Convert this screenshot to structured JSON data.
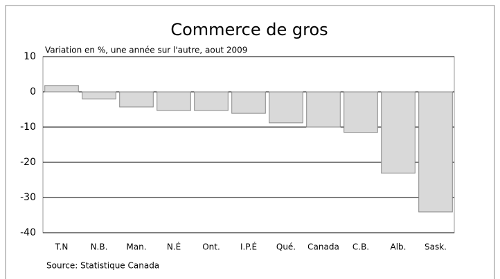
{
  "chart_data": {
    "type": "bar",
    "title": "Commerce de gros",
    "subtitle": "Variation en %, une année sur l'autre, aout 2009",
    "source": "Source: Statistique Canada",
    "categories": [
      "T.N",
      "N.B.",
      "Man.",
      "N.É",
      "Ont.",
      "I.P.É",
      "Qué.",
      "Canada",
      "C.B.",
      "Alb.",
      "Sask."
    ],
    "values": [
      1.8,
      -2,
      -4.3,
      -5.3,
      -5.3,
      -6.1,
      -8.8,
      -10,
      -11.5,
      -23.1,
      -34.1
    ],
    "color": "#d9d9d9",
    "ylim": [
      -40,
      10
    ],
    "yticks": [
      10,
      0,
      -10,
      -20,
      -30,
      -40
    ],
    "grid": true
  }
}
